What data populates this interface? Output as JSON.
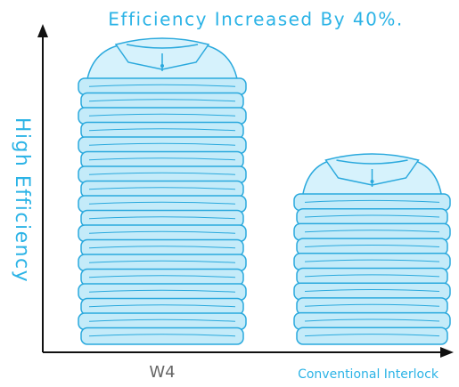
{
  "title": "Efficiency Increased By 40%.",
  "y_axis_label": "High Efficiency",
  "stacks": [
    {
      "label": "W4"
    },
    {
      "label": "Conventional Interlock"
    }
  ]
}
